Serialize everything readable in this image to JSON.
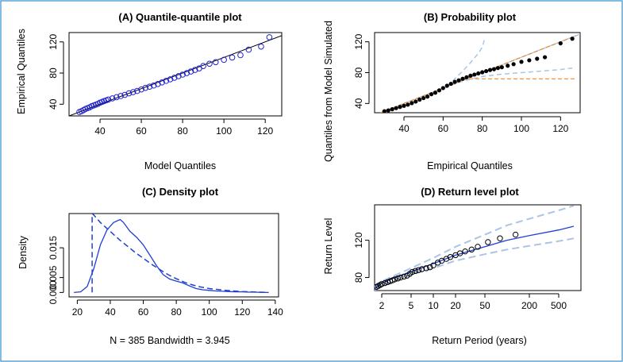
{
  "colors": {
    "frame": "#5aa6d6",
    "obs": "#2020d0",
    "fit": "#1f3fd6",
    "ci": "#a9c5e6",
    "orange": "#f08a2a",
    "black": "#000000"
  },
  "chart_data": [
    {
      "id": "A",
      "type": "scatter",
      "title": "(A) Quantile-quantile plot",
      "xlabel": "Model Quantiles",
      "ylabel": "Empirical Quantiles",
      "xlim": [
        25,
        128
      ],
      "ylim": [
        25,
        132
      ],
      "xticks": [
        40,
        60,
        80,
        100,
        120
      ],
      "yticks": [
        40,
        80,
        120
      ],
      "series": [
        {
          "name": "quantiles",
          "x": [
            30,
            31,
            32,
            33,
            34,
            35,
            36,
            37,
            38,
            39,
            40,
            41,
            42,
            43,
            44,
            46,
            48,
            50,
            52,
            54,
            56,
            58,
            60,
            62,
            64,
            66,
            68,
            70,
            72,
            74,
            76,
            78,
            80,
            82,
            84,
            86,
            88,
            90,
            93,
            96,
            100,
            104,
            108,
            112,
            118,
            122
          ],
          "y": [
            30,
            31,
            32.5,
            34,
            35,
            36,
            37.5,
            38.5,
            39.5,
            40.5,
            42,
            43,
            44,
            45,
            46,
            47.5,
            49,
            50.5,
            52,
            54,
            55.5,
            57,
            59,
            61,
            62.5,
            64,
            66,
            68,
            70,
            72,
            74,
            76,
            78,
            80,
            82,
            84,
            86,
            89,
            92,
            94,
            97,
            100,
            103,
            110,
            114,
            126
          ]
        },
        {
          "name": "reference line",
          "x": [
            25,
            128
          ],
          "y": [
            25,
            128
          ]
        }
      ]
    },
    {
      "id": "B",
      "type": "scatter",
      "title": "(B) Probability plot",
      "xlabel": "Empirical Quantiles",
      "ylabel": "Quantiles from Model Simulated",
      "xlim": [
        25,
        130
      ],
      "ylim": [
        28,
        132
      ],
      "xticks": [
        40,
        60,
        80,
        100,
        120
      ],
      "yticks": [
        40,
        80,
        120
      ],
      "series": [
        {
          "name": "points",
          "x": [
            30,
            32,
            34,
            36,
            38,
            40,
            42,
            44,
            46,
            48,
            50,
            52,
            54,
            56,
            58,
            60,
            62,
            64,
            66,
            68,
            70,
            72,
            74,
            76,
            78,
            80,
            82,
            84,
            86,
            88,
            90,
            93,
            96,
            100,
            104,
            108,
            112,
            120,
            126
          ],
          "y": [
            30,
            31,
            32.5,
            34,
            35.5,
            37,
            38.5,
            40.5,
            42.5,
            45,
            47,
            49,
            52,
            54,
            57,
            60,
            63,
            65.5,
            68,
            70,
            72,
            74,
            76,
            77.5,
            79,
            80.5,
            82,
            83.5,
            84.5,
            86,
            87,
            89,
            91,
            94,
            96,
            98,
            100,
            118,
            124
          ]
        },
        {
          "name": "1-1 line",
          "x": [
            28,
            130
          ],
          "y": [
            28,
            130
          ]
        },
        {
          "name": "upper band",
          "x": [
            62,
            66,
            70,
            74,
            78,
            80,
            81
          ],
          "y": [
            62,
            72,
            82,
            93,
            105,
            113,
            122
          ]
        },
        {
          "name": "lower band",
          "x": [
            60,
            70,
            80,
            90,
            100,
            110,
            120,
            126
          ],
          "y": [
            60,
            69,
            75,
            78,
            80,
            82,
            84,
            86
          ]
        },
        {
          "name": "fitted dashed",
          "x": [
            28,
            40,
            50,
            60,
            70,
            80,
            90,
            100,
            110,
            120,
            128
          ],
          "y": [
            28,
            40,
            50,
            60,
            70,
            80,
            90,
            100,
            110,
            120,
            128
          ]
        },
        {
          "name": "orange flat",
          "x": [
            70,
            80,
            90,
            100,
            110,
            120,
            128
          ],
          "y": [
            72,
            72,
            72,
            72,
            72,
            72,
            72
          ]
        }
      ]
    },
    {
      "id": "C",
      "type": "line",
      "title": "(C) Density plot",
      "xlabel": "N = 385   Bandwidth = 3.945",
      "ylabel": "Density",
      "xlim": [
        15,
        142
      ],
      "ylim": [
        -0.0015,
        0.0265
      ],
      "xticks": [
        20,
        40,
        60,
        80,
        100,
        120,
        140
      ],
      "yticks": [
        0.0,
        0.005,
        0.015
      ],
      "ytick_labels": [
        "0.000",
        "0.005",
        "0.015"
      ],
      "series": [
        {
          "name": "empirical density",
          "x": [
            18,
            22,
            26,
            30,
            34,
            38,
            42,
            46,
            48,
            52,
            56,
            60,
            64,
            68,
            72,
            76,
            80,
            84,
            88,
            92,
            96,
            100,
            104,
            108,
            112,
            116,
            120,
            124,
            128,
            132,
            136
          ],
          "y": [
            0,
            0.0002,
            0.002,
            0.008,
            0.016,
            0.021,
            0.0235,
            0.0245,
            0.0235,
            0.0205,
            0.0185,
            0.016,
            0.0125,
            0.009,
            0.006,
            0.0045,
            0.0038,
            0.0032,
            0.0022,
            0.0013,
            0.0009,
            0.0007,
            0.0005,
            0.0004,
            0.0003,
            0.0002,
            0.0002,
            0.0001,
            0.0001,
            0,
            0
          ]
        },
        {
          "name": "model density",
          "x": [
            29,
            29,
            30,
            34,
            38,
            42,
            46,
            50,
            55,
            60,
            65,
            70,
            75,
            80,
            85,
            90,
            95,
            100,
            110,
            120,
            130,
            136
          ],
          "y": [
            0,
            0.0265,
            0.026,
            0.0235,
            0.0215,
            0.0195,
            0.0175,
            0.0157,
            0.0135,
            0.0115,
            0.0095,
            0.0077,
            0.006,
            0.0046,
            0.0034,
            0.0025,
            0.0018,
            0.0013,
            0.0007,
            0.0003,
            0.0001,
            0
          ]
        }
      ]
    },
    {
      "id": "D",
      "type": "line",
      "title": "(D) Return level plot",
      "xlabel": "Return Period (years)",
      "ylabel": "Return Level",
      "xscale": "log",
      "xlim": [
        1.6,
        1000
      ],
      "ylim": [
        66,
        158
      ],
      "xticks": [
        2,
        5,
        10,
        20,
        50,
        200,
        500
      ],
      "yticks": [
        80,
        120
      ],
      "series": [
        {
          "name": "fitted return level",
          "x": [
            1.6,
            2,
            3,
            5,
            10,
            20,
            50,
            100,
            200,
            500,
            800
          ],
          "y": [
            68,
            74,
            80,
            86,
            95,
            104,
            113,
            120,
            125,
            131,
            135
          ]
        },
        {
          "name": "upper CI",
          "x": [
            1.6,
            2,
            5,
            10,
            20,
            50,
            100,
            200,
            500,
            800
          ],
          "y": [
            70,
            76,
            90,
            101,
            113,
            126,
            136,
            143,
            152,
            157
          ]
        },
        {
          "name": "lower CI",
          "x": [
            1.6,
            2,
            5,
            10,
            20,
            50,
            100,
            200,
            500,
            800
          ],
          "y": [
            66,
            71,
            83,
            90,
            98,
            105,
            110,
            114,
            119,
            122
          ]
        },
        {
          "name": "empirical points",
          "x": [
            1.7,
            1.8,
            1.9,
            2,
            2.2,
            2.4,
            2.6,
            2.8,
            3,
            3.3,
            3.6,
            4,
            4.4,
            4.8,
            5.2,
            5.7,
            6.3,
            7,
            8,
            9,
            10,
            11.5,
            13,
            15,
            17,
            20,
            23,
            27,
            33,
            40,
            55,
            80,
            130
          ],
          "y": [
            70,
            71,
            72,
            73,
            74,
            75,
            76,
            77,
            78,
            79,
            80,
            81,
            82,
            84,
            86,
            87,
            88,
            89,
            90,
            91,
            93,
            96,
            98,
            100,
            102,
            104,
            106,
            108,
            110,
            113,
            118,
            122,
            126
          ]
        }
      ]
    }
  ]
}
